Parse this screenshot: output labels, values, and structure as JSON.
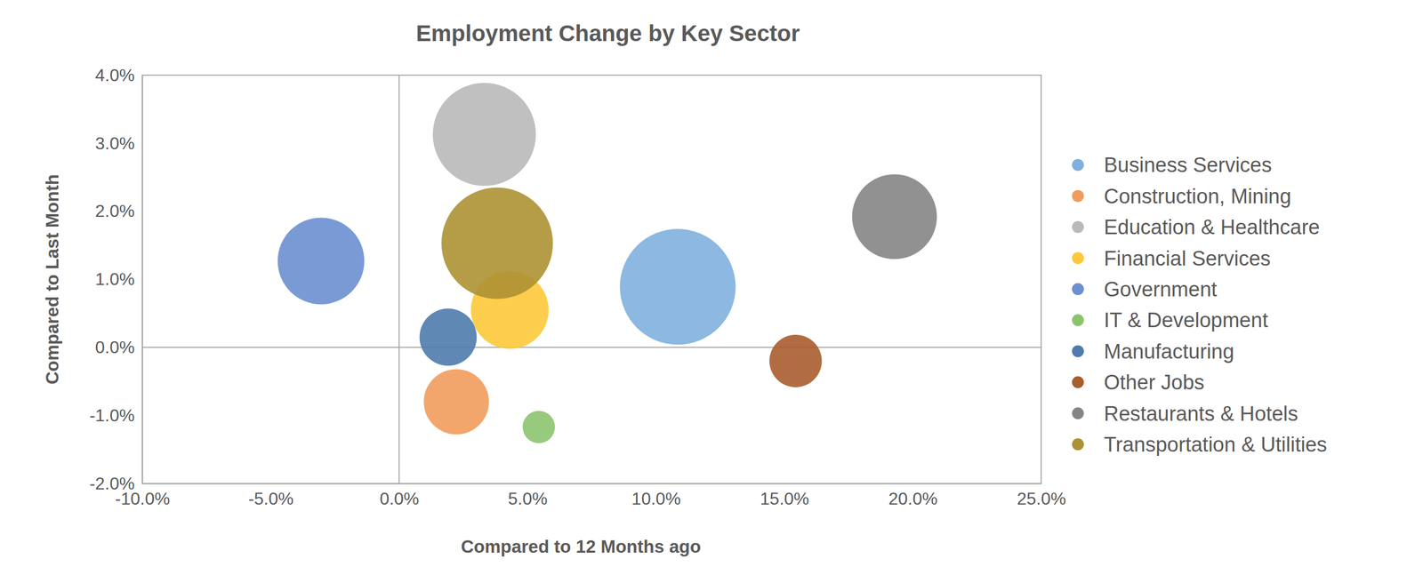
{
  "chart_data": {
    "type": "bubble",
    "title": "Employment Change by Key Sector",
    "x_label": "Compared to 12 Months ago",
    "y_label": "Compared to Last Month",
    "xlim": [
      -10,
      25
    ],
    "ylim": [
      -2,
      4
    ],
    "xticks": [
      {
        "value": -10,
        "label": "-10.0%"
      },
      {
        "value": -5,
        "label": "-5.0%"
      },
      {
        "value": 0,
        "label": "0.0%"
      },
      {
        "value": 5,
        "label": "5.0%"
      },
      {
        "value": 10,
        "label": "10.0%"
      },
      {
        "value": 15,
        "label": "15.0%"
      },
      {
        "value": 20,
        "label": "20.0%"
      },
      {
        "value": 25,
        "label": "25.0%"
      }
    ],
    "yticks": [
      {
        "value": -2,
        "label": "-2.0%"
      },
      {
        "value": -1,
        "label": "-1.0%"
      },
      {
        "value": 0,
        "label": "0.0%"
      },
      {
        "value": 1,
        "label": "1.0%"
      },
      {
        "value": 2,
        "label": "2.0%"
      },
      {
        "value": 3,
        "label": "3.0%"
      },
      {
        "value": 4,
        "label": "4.0%"
      }
    ],
    "grid": false,
    "legend": "right",
    "series": [
      {
        "name": "Business Services",
        "color": "#7fb0de",
        "x": [
          10.85
        ],
        "values": [
          0.89
        ],
        "sizes": [
          41
        ]
      },
      {
        "name": "Construction, Mining",
        "color": "#f19c5c",
        "x": [
          2.23
        ],
        "values": [
          -0.8
        ],
        "sizes": [
          13
        ]
      },
      {
        "name": "Education & Healthcare",
        "color": "#b9b9b9",
        "x": [
          3.32
        ],
        "values": [
          3.13
        ],
        "sizes": [
          32.5
        ]
      },
      {
        "name": "Financial Services",
        "color": "#fdc93a",
        "x": [
          4.31
        ],
        "values": [
          0.55
        ],
        "sizes": [
          18.5
        ]
      },
      {
        "name": "Government",
        "color": "#6c8fd1",
        "x": [
          -3.04
        ],
        "values": [
          1.27
        ],
        "sizes": [
          23
        ]
      },
      {
        "name": "IT & Development",
        "color": "#8cc46e",
        "x": [
          5.44
        ],
        "values": [
          -1.17
        ],
        "sizes": [
          3.2
        ]
      },
      {
        "name": "Manufacturing",
        "color": "#4e7bad",
        "x": [
          1.91
        ],
        "values": [
          0.15
        ],
        "sizes": [
          10
        ]
      },
      {
        "name": "Other Jobs",
        "color": "#a85d2c",
        "x": [
          15.44
        ],
        "values": [
          -0.2
        ],
        "sizes": [
          8.4
        ]
      },
      {
        "name": "Restaurants & Hotels",
        "color": "#858585",
        "x": [
          19.29
        ],
        "values": [
          1.92
        ],
        "sizes": [
          22
        ]
      },
      {
        "name": "Transportation & Utilities",
        "color": "#ad9133",
        "x": [
          3.82
        ],
        "values": [
          1.53
        ],
        "sizes": [
          38
        ]
      }
    ]
  }
}
